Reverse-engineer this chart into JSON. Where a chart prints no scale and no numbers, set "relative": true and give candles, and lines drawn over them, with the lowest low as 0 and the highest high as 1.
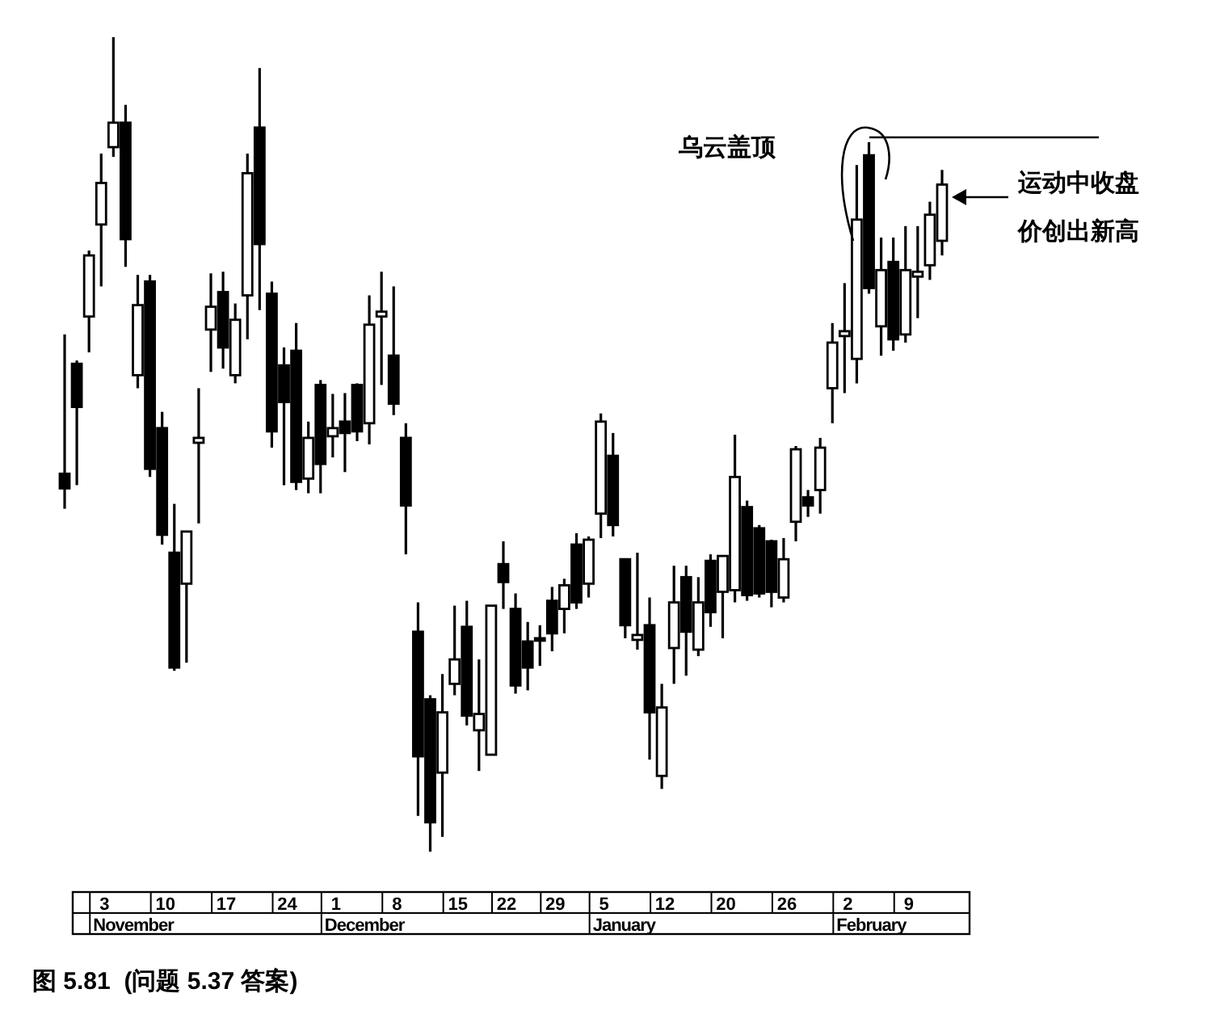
{
  "chart_data": {
    "type": "candlestick",
    "relative": true,
    "categories": [
      null,
      null,
      null,
      "3",
      null,
      null,
      null,
      null,
      "10",
      null,
      null,
      null,
      null,
      "17",
      null,
      null,
      null,
      null,
      "24",
      null,
      null,
      null,
      "1",
      null,
      null,
      null,
      null,
      "8",
      null,
      null,
      null,
      null,
      "15",
      null,
      null,
      null,
      "22",
      null,
      null,
      null,
      "29",
      null,
      null,
      null,
      "5",
      null,
      null,
      null,
      null,
      "12",
      null,
      null,
      null,
      null,
      "20",
      null,
      null,
      null,
      null,
      "26",
      null,
      null,
      null,
      null,
      "2",
      null,
      null,
      null,
      null,
      "9",
      null,
      null,
      null
    ],
    "ohlc": [
      [
        0.464,
        0.635,
        0.421,
        0.446
      ],
      [
        0.599,
        0.603,
        0.45,
        0.546
      ],
      [
        0.657,
        0.738,
        0.613,
        0.732
      ],
      [
        0.77,
        0.857,
        0.694,
        0.821
      ],
      [
        0.865,
        1.0,
        0.853,
        0.895
      ],
      [
        0.895,
        0.917,
        0.718,
        0.752
      ],
      [
        0.585,
        0.708,
        0.569,
        0.671
      ],
      [
        0.7,
        0.708,
        0.46,
        0.47
      ],
      [
        0.52,
        0.54,
        0.377,
        0.389
      ],
      [
        0.367,
        0.427,
        0.222,
        0.226
      ],
      [
        0.329,
        0.393,
        0.232,
        0.393
      ],
      [
        0.502,
        0.569,
        0.403,
        0.508
      ],
      [
        0.641,
        0.71,
        0.589,
        0.669
      ],
      [
        0.687,
        0.712,
        0.593,
        0.619
      ],
      [
        0.585,
        0.673,
        0.575,
        0.653
      ],
      [
        0.683,
        0.857,
        0.629,
        0.833
      ],
      [
        0.889,
        0.962,
        0.665,
        0.746
      ],
      [
        0.685,
        0.7,
        0.496,
        0.516
      ],
      [
        0.597,
        0.619,
        0.45,
        0.552
      ],
      [
        0.615,
        0.649,
        0.444,
        0.454
      ],
      [
        0.458,
        0.528,
        0.44,
        0.508
      ],
      [
        0.573,
        0.579,
        0.44,
        0.476
      ],
      [
        0.51,
        0.562,
        0.484,
        0.52
      ],
      [
        0.528,
        0.563,
        0.466,
        0.514
      ],
      [
        0.573,
        0.575,
        0.504,
        0.516
      ],
      [
        0.526,
        0.683,
        0.5,
        0.647
      ],
      [
        0.657,
        0.712,
        0.573,
        0.663
      ],
      [
        0.609,
        0.694,
        0.536,
        0.55
      ],
      [
        0.508,
        0.526,
        0.365,
        0.425
      ],
      [
        0.27,
        0.306,
        0.044,
        0.117
      ],
      [
        0.187,
        0.192,
        0.0,
        0.036
      ],
      [
        0.097,
        0.218,
        0.018,
        0.171
      ],
      [
        0.206,
        0.302,
        0.192,
        0.236
      ],
      [
        0.276,
        0.308,
        0.155,
        0.167
      ],
      [
        0.149,
        0.236,
        0.099,
        0.169
      ],
      [
        0.119,
        0.302,
        0.119,
        0.302
      ],
      [
        0.353,
        0.381,
        0.298,
        0.331
      ],
      [
        0.298,
        0.317,
        0.194,
        0.204
      ],
      [
        0.258,
        0.282,
        0.198,
        0.226
      ],
      [
        0.262,
        0.278,
        0.228,
        0.26
      ],
      [
        0.308,
        0.325,
        0.246,
        0.268
      ],
      [
        0.298,
        0.335,
        0.268,
        0.327
      ],
      [
        0.377,
        0.391,
        0.298,
        0.306
      ],
      [
        0.329,
        0.387,
        0.312,
        0.383
      ],
      [
        0.415,
        0.538,
        0.385,
        0.528
      ],
      [
        0.486,
        0.514,
        0.387,
        0.401
      ],
      [
        0.359,
        0.359,
        0.262,
        0.278
      ],
      [
        0.26,
        0.367,
        0.248,
        0.266
      ],
      [
        0.278,
        0.312,
        0.113,
        0.171
      ],
      [
        0.093,
        0.206,
        0.077,
        0.177
      ],
      [
        0.25,
        0.351,
        0.206,
        0.306
      ],
      [
        0.337,
        0.351,
        0.216,
        0.27
      ],
      [
        0.248,
        0.337,
        0.24,
        0.306
      ],
      [
        0.357,
        0.365,
        0.276,
        0.294
      ],
      [
        0.319,
        0.363,
        0.262,
        0.363
      ],
      [
        0.321,
        0.512,
        0.306,
        0.46
      ],
      [
        0.423,
        0.431,
        0.308,
        0.315
      ],
      [
        0.397,
        0.401,
        0.312,
        0.317
      ],
      [
        0.381,
        0.383,
        0.3,
        0.319
      ],
      [
        0.312,
        0.385,
        0.306,
        0.359
      ],
      [
        0.405,
        0.498,
        0.381,
        0.494
      ],
      [
        0.435,
        0.444,
        0.411,
        0.425
      ],
      [
        0.444,
        0.508,
        0.415,
        0.496
      ],
      [
        0.569,
        0.649,
        0.526,
        0.625
      ],
      [
        0.633,
        0.698,
        0.563,
        0.639
      ],
      [
        0.605,
        0.843,
        0.575,
        0.776
      ],
      [
        0.855,
        0.871,
        0.685,
        0.692
      ],
      [
        0.645,
        0.754,
        0.609,
        0.714
      ],
      [
        0.724,
        0.754,
        0.615,
        0.629
      ],
      [
        0.635,
        0.768,
        0.625,
        0.714
      ],
      [
        0.706,
        0.768,
        0.655,
        0.712
      ],
      [
        0.72,
        0.798,
        0.702,
        0.782
      ],
      [
        0.75,
        0.837,
        0.732,
        0.819
      ]
    ],
    "annotations": [
      "November",
      "December",
      "January",
      "February",
      "乌云盖顶",
      "运动中收盘价创出新高",
      "图 5.81  (问题 5.37 答案)"
    ]
  }
}
